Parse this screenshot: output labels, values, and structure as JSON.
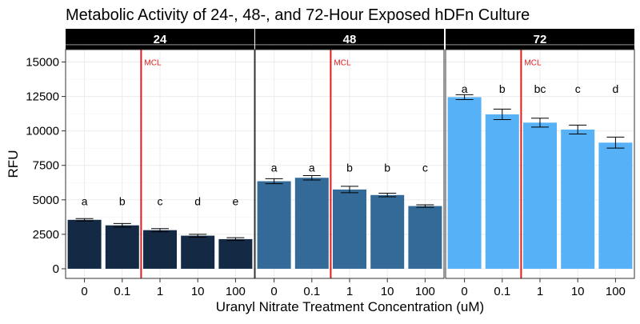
{
  "chart_data": {
    "type": "bar",
    "title": "Metabolic Activity of 24-, 48-, and 72-Hour Exposed hDFn Culture",
    "xlabel": "Uranyl Nitrate Treatment Concentration (uM)",
    "ylabel": "RFU",
    "categories": [
      "0",
      "0.1",
      "1",
      "10",
      "100"
    ],
    "ylim": [
      -700,
      15900
    ],
    "yticks": [
      0,
      2500,
      5000,
      7500,
      10000,
      12500,
      15000
    ],
    "grid": true,
    "reference_line": {
      "label": "MCL",
      "position_between": [
        "0.1",
        "1"
      ],
      "color": "#e31a1c"
    },
    "panels": [
      {
        "name": "24",
        "color": "#142a44",
        "values": [
          3550,
          3150,
          2800,
          2400,
          2150
        ],
        "errors": [
          90,
          130,
          110,
          100,
          100
        ],
        "letters": [
          "a",
          "b",
          "c",
          "d",
          "e"
        ],
        "letter_y": 4900
      },
      {
        "name": "48",
        "color": "#336a98",
        "values": [
          6350,
          6600,
          5750,
          5350,
          4550
        ],
        "errors": [
          180,
          160,
          230,
          130,
          90
        ],
        "letters": [
          "a",
          "a",
          "b",
          "b",
          "c"
        ],
        "letter_y": 7350
      },
      {
        "name": "72",
        "color": "#56b1f7",
        "values": [
          12450,
          11200,
          10600,
          10100,
          9150
        ],
        "errors": [
          180,
          380,
          320,
          320,
          400
        ],
        "letters": [
          "a",
          "b",
          "bc",
          "c",
          "d"
        ],
        "letter_y": 13050
      }
    ]
  }
}
